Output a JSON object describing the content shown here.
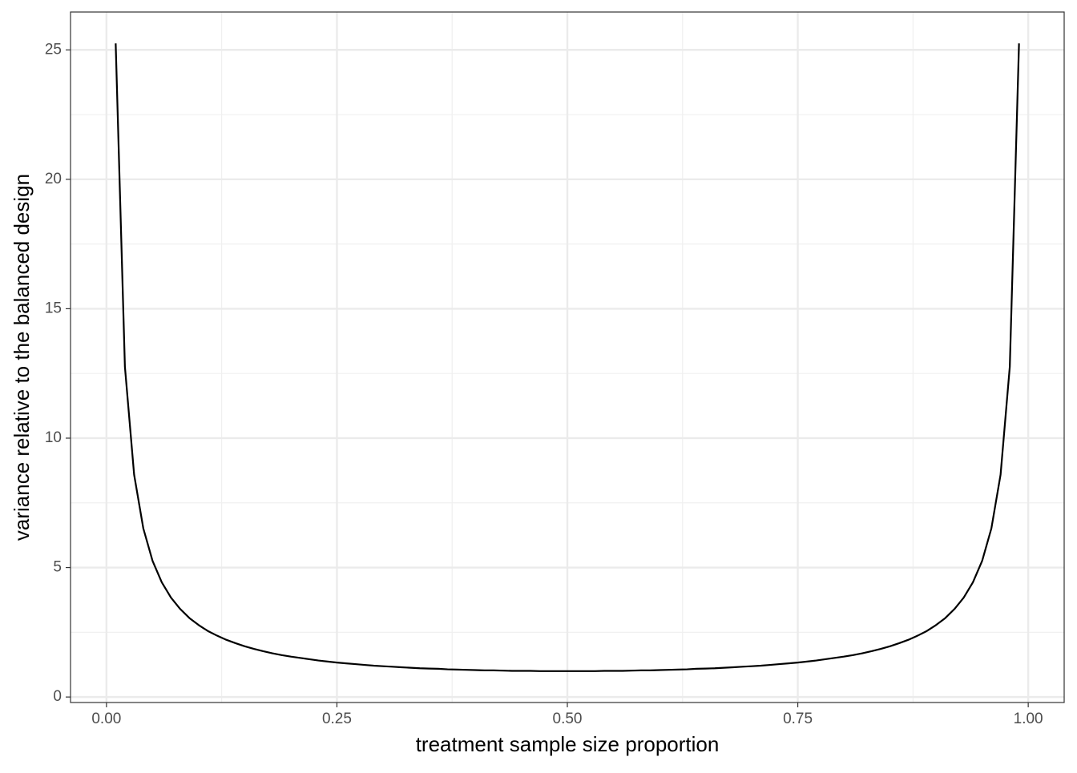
{
  "chart_data": {
    "type": "line",
    "x_label": "treatment sample size proportion",
    "y_label": "variance relative to the balanced design",
    "x": [
      0.01,
      0.02,
      0.03,
      0.04,
      0.05,
      0.06,
      0.07,
      0.08,
      0.09,
      0.1,
      0.11,
      0.12,
      0.13,
      0.14,
      0.15,
      0.16,
      0.17,
      0.18,
      0.19,
      0.2,
      0.21,
      0.22,
      0.23,
      0.24,
      0.25,
      0.26,
      0.27,
      0.28,
      0.29,
      0.3,
      0.31,
      0.32,
      0.33,
      0.34,
      0.35,
      0.36,
      0.37,
      0.38,
      0.39,
      0.4,
      0.41,
      0.42,
      0.43,
      0.44,
      0.45,
      0.46,
      0.47,
      0.48,
      0.49,
      0.5,
      0.51,
      0.52,
      0.53,
      0.54,
      0.55,
      0.56,
      0.57,
      0.58,
      0.59,
      0.6,
      0.61,
      0.62,
      0.63,
      0.64,
      0.65,
      0.66,
      0.67,
      0.68,
      0.69,
      0.7,
      0.71,
      0.72,
      0.73,
      0.74,
      0.75,
      0.76,
      0.77,
      0.78,
      0.79,
      0.8,
      0.81,
      0.82,
      0.83,
      0.84,
      0.85,
      0.86,
      0.87,
      0.88,
      0.89,
      0.9,
      0.91,
      0.92,
      0.93,
      0.94,
      0.95,
      0.96,
      0.97,
      0.98,
      0.99
    ],
    "y": [
      25.25,
      12.76,
      8.59,
      6.51,
      5.26,
      4.43,
      3.84,
      3.4,
      3.05,
      2.78,
      2.55,
      2.37,
      2.21,
      2.08,
      1.96,
      1.86,
      1.77,
      1.69,
      1.62,
      1.56,
      1.51,
      1.46,
      1.41,
      1.37,
      1.33,
      1.3,
      1.27,
      1.24,
      1.21,
      1.19,
      1.17,
      1.15,
      1.13,
      1.11,
      1.1,
      1.09,
      1.07,
      1.06,
      1.05,
      1.04,
      1.03,
      1.03,
      1.02,
      1.01,
      1.01,
      1.01,
      1.0,
      1.0,
      1.0,
      1.0,
      1.0,
      1.0,
      1.0,
      1.01,
      1.01,
      1.01,
      1.02,
      1.03,
      1.03,
      1.04,
      1.05,
      1.06,
      1.07,
      1.09,
      1.1,
      1.11,
      1.13,
      1.15,
      1.17,
      1.19,
      1.21,
      1.24,
      1.27,
      1.3,
      1.33,
      1.37,
      1.41,
      1.46,
      1.51,
      1.56,
      1.62,
      1.69,
      1.77,
      1.86,
      1.96,
      2.08,
      2.21,
      2.37,
      2.55,
      2.78,
      3.05,
      3.4,
      3.84,
      4.43,
      5.26,
      6.51,
      8.59,
      12.76,
      25.25
    ],
    "color": "#000000",
    "xlim": [
      -0.039,
      1.039
    ],
    "ylim": [
      -0.2125,
      26.4625
    ],
    "xticks": [
      {
        "value": 0,
        "label": "0.00"
      },
      {
        "value": 0.25,
        "label": "0.25"
      },
      {
        "value": 0.5,
        "label": "0.50"
      },
      {
        "value": 0.75,
        "label": "0.75"
      },
      {
        "value": 1,
        "label": "1.00"
      }
    ],
    "yticks": [
      0,
      5,
      10,
      15,
      20,
      25
    ],
    "grid": true
  }
}
